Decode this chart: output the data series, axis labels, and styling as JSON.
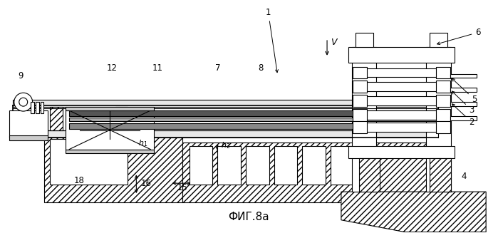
{
  "title": "ФИГ.8a",
  "bg_color": "#ffffff",
  "line_color": "#000000"
}
